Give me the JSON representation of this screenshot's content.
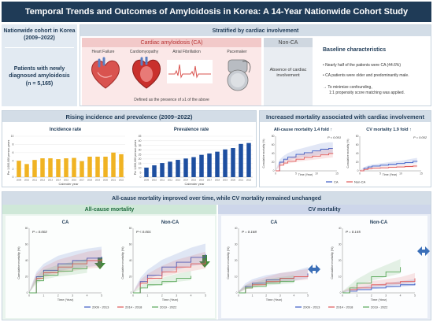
{
  "title": "Temporal Trends and Outcomes of Amyloidosis in Korea: A 14-Year Nationwide Cohort Study",
  "cohort": {
    "title_line1": "Nationwide cohort in Korea",
    "title_line2": "(2009–2022)",
    "patients_line1": "Patients with newly",
    "patients_line2": "diagnosed amyloidosis",
    "patients_line3": "(n = 5,165)"
  },
  "stratified": {
    "header": "Stratified by cardiac involvement",
    "ca_label": "Cardiac amyloidosis (CA)",
    "items": [
      "Heart Failure",
      "Cardiomyopathy",
      "Atrial Fibrillation",
      "Pacemaker"
    ],
    "ca_definition": "Defined as the presence of ≥1 of the above",
    "nonca_label": "Non-CA",
    "nonca_line1": "Absence of cardiac",
    "nonca_line2": "involvement",
    "baseline_title": "Baseline characteristics",
    "baseline_bullets": [
      "Nearly half of the patients were CA (44.6%)",
      "CA patients were older and predominantly male."
    ],
    "baseline_arrow_line1": "To minimize confounding,",
    "baseline_arrow_line2": "1:1 propensity score matching was applied."
  },
  "rising": {
    "header": "Rising incidence and prevalence (2009–2022)",
    "incidence": {
      "title": "Incidence rate",
      "ylabel": "Per 1,000,000 person-years",
      "xlabel": "Calender year",
      "yticks": [
        "0",
        "2",
        "4",
        "6",
        "8",
        "10"
      ],
      "color": "#f0b323"
    },
    "prevalence": {
      "title": "Prevalence rate",
      "ylabel": "Per 1,000,000 person-years",
      "xlabel": "Calender year",
      "yticks": [
        "0",
        "5",
        "10",
        "15",
        "20",
        "25",
        "30",
        "35",
        "40",
        "45"
      ],
      "color": "#1e4fa0"
    }
  },
  "mortality": {
    "header": "Increased mortality associated with cardiac involvement",
    "allcause_title": "All-cause mortality 1.4 fold ↑",
    "cv_title": "CV mortality 1.9 fold ↑",
    "allcause_p": "P < 0.001",
    "cv_p": "P = 0.002",
    "ylabel": "Cumulative mortality (%)",
    "xlabel": "Time (Year)",
    "xticks": [
      "0",
      "5",
      "10",
      "15"
    ],
    "allcause_yticks": [
      "0",
      "20",
      "40",
      "60",
      "80"
    ],
    "cv_yticks": [
      "0",
      "20",
      "40",
      "60",
      "80"
    ],
    "legend_ca": "CA",
    "legend_nonca": "Non-CA",
    "ca_color": "#3b5bc4",
    "nonca_color": "#e05a5a"
  },
  "over_time": {
    "header": "All-cause mortality improved over time,  while CV mortality remained unchanged",
    "allcause_label": "All-cause mortality",
    "cv_label": "CV mortality",
    "ylabel": "Cumulative mortality (%)",
    "xlabel": "Time (Year)",
    "xticks": [
      "0",
      "1",
      "2",
      "3",
      "4",
      "5"
    ],
    "ac_ca": {
      "title": "CA",
      "p": "P = 0.002",
      "yticks": [
        "0",
        "20",
        "40",
        "60",
        "80"
      ]
    },
    "ac_nonca": {
      "title": "Non-CA",
      "p": "P < 0.001",
      "yticks": [
        "0",
        "20",
        "40",
        "60",
        "80"
      ]
    },
    "cv_ca": {
      "title": "CA",
      "p": "P = 0.168",
      "yticks": [
        "0",
        "10",
        "20",
        "30",
        "40"
      ]
    },
    "cv_nonca": {
      "title": "Non-CA",
      "p": "P = 0.145",
      "yticks": [
        "0",
        "10",
        "20",
        "30",
        "40"
      ]
    },
    "legend": [
      "2009 - 2013",
      "2014 - 2018",
      "2019 - 2022"
    ],
    "legend_colors": [
      "#3b5bc4",
      "#e05a5a",
      "#5aa85a"
    ]
  },
  "chart_data": [
    {
      "type": "bar",
      "title": "Incidence rate",
      "xlabel": "Calender year",
      "ylabel": "Per 1,000,000 person-years",
      "categories": [
        "2009",
        "2010",
        "2011",
        "2012",
        "2013",
        "2014",
        "2015",
        "2016",
        "2017",
        "2018",
        "2019",
        "2020",
        "2021",
        "2022"
      ],
      "values": [
        4.0,
        3.2,
        4.2,
        4.6,
        4.6,
        4.4,
        4.6,
        4.7,
        3.9,
        5.0,
        5.0,
        5.0,
        6.0,
        5.6
      ],
      "ylim": [
        0,
        10
      ]
    },
    {
      "type": "bar",
      "title": "Prevalence rate",
      "xlabel": "Calender year",
      "ylabel": "Per 1,000,000 person-years",
      "categories": [
        "2009",
        "2010",
        "2011",
        "2012",
        "2013",
        "2014",
        "2015",
        "2016",
        "2017",
        "2018",
        "2019",
        "2020",
        "2021",
        "2022"
      ],
      "values": [
        10.5,
        13.0,
        15.5,
        17.0,
        19.0,
        20.5,
        22.0,
        24.5,
        26.0,
        28.0,
        30.5,
        32.0,
        36.5,
        37.5
      ],
      "ylim": [
        0,
        45
      ]
    },
    {
      "type": "line",
      "title": "All-cause mortality 1.4 fold ↑",
      "xlabel": "Time (Year)",
      "ylabel": "Cumulative mortality (%)",
      "ylim": [
        0,
        80
      ],
      "xlim": [
        0,
        15
      ],
      "series": [
        {
          "name": "CA",
          "x": [
            0,
            1,
            2,
            3,
            5,
            7,
            9,
            11,
            13,
            14
          ],
          "y": [
            0,
            20,
            27,
            32,
            38,
            42,
            46,
            50,
            52,
            52
          ]
        },
        {
          "name": "Non-CA",
          "x": [
            0,
            1,
            2,
            3,
            5,
            7,
            9,
            11,
            13,
            14
          ],
          "y": [
            0,
            13,
            18,
            22,
            27,
            31,
            34,
            37,
            40,
            41
          ]
        }
      ]
    },
    {
      "type": "line",
      "title": "CV mortality 1.9 fold ↑",
      "xlabel": "Time (Year)",
      "ylabel": "Cumulative mortality (%)",
      "ylim": [
        0,
        80
      ],
      "xlim": [
        0,
        15
      ],
      "series": [
        {
          "name": "CA",
          "x": [
            0,
            1,
            2,
            3,
            5,
            7,
            9,
            11,
            13,
            14
          ],
          "y": [
            0,
            6,
            9,
            11,
            13,
            15,
            17,
            19,
            22,
            23
          ]
        },
        {
          "name": "Non-CA",
          "x": [
            0,
            1,
            2,
            3,
            5,
            7,
            9,
            11,
            13,
            14
          ],
          "y": [
            0,
            3,
            5,
            6,
            7,
            8,
            9,
            10,
            11,
            11
          ]
        }
      ]
    },
    {
      "type": "line",
      "title": "CA",
      "xlabel": "Time (Year)",
      "ylabel": "Cumulative mortality (%)",
      "ylim": [
        0,
        80
      ],
      "xlim": [
        0,
        5
      ],
      "series": [
        {
          "name": "2009 - 2013",
          "x": [
            0,
            0.5,
            1,
            2,
            3,
            4,
            5
          ],
          "y": [
            0,
            20,
            28,
            36,
            40,
            43,
            45
          ]
        },
        {
          "name": "2014 - 2018",
          "x": [
            0,
            0.5,
            1,
            2,
            3,
            4,
            5
          ],
          "y": [
            0,
            18,
            25,
            32,
            36,
            40,
            42
          ]
        },
        {
          "name": "2019 - 2022",
          "x": [
            0,
            0.5,
            1,
            2,
            3,
            4
          ],
          "y": [
            0,
            15,
            22,
            27,
            30,
            33
          ]
        }
      ]
    },
    {
      "type": "line",
      "title": "Non-CA",
      "xlabel": "Time (Year)",
      "ylabel": "Cumulative mortality (%)",
      "ylim": [
        0,
        80
      ],
      "xlim": [
        0,
        5
      ],
      "series": [
        {
          "name": "2009 - 2013",
          "x": [
            0,
            0.5,
            1,
            2,
            3,
            4,
            5
          ],
          "y": [
            0,
            14,
            22,
            32,
            38,
            44,
            48
          ]
        },
        {
          "name": "2014 - 2018",
          "x": [
            0,
            0.5,
            1,
            2,
            3,
            4,
            5
          ],
          "y": [
            0,
            12,
            18,
            26,
            32,
            36,
            40
          ]
        },
        {
          "name": "2019 - 2022",
          "x": [
            0,
            0.5,
            1,
            2,
            3,
            4
          ],
          "y": [
            0,
            6,
            10,
            14,
            18,
            21
          ]
        }
      ]
    },
    {
      "type": "line",
      "title": "CA",
      "xlabel": "Time (Year)",
      "ylabel": "Cumulative mortality (%)",
      "ylim": [
        0,
        40
      ],
      "xlim": [
        0,
        5
      ],
      "series": [
        {
          "name": "2009 - 2013",
          "x": [
            0,
            0.5,
            1,
            2,
            3,
            4,
            5
          ],
          "y": [
            0,
            4,
            6,
            8,
            9,
            10,
            12
          ]
        },
        {
          "name": "2014 - 2018",
          "x": [
            0,
            0.5,
            1,
            2,
            3,
            4,
            5
          ],
          "y": [
            0,
            3,
            5,
            7,
            9,
            10,
            11
          ]
        },
        {
          "name": "2019 - 2022",
          "x": [
            0,
            0.5,
            1,
            2,
            3,
            4
          ],
          "y": [
            0,
            3,
            4,
            6,
            7,
            8
          ]
        }
      ]
    },
    {
      "type": "line",
      "title": "Non-CA",
      "xlabel": "Time (Year)",
      "ylabel": "Cumulative mortality (%)",
      "ylim": [
        0,
        40
      ],
      "xlim": [
        0,
        5
      ],
      "series": [
        {
          "name": "2009 - 2013",
          "x": [
            0,
            0.5,
            1,
            2,
            3,
            4,
            5
          ],
          "y": [
            0,
            1,
            2,
            3,
            4,
            5,
            6
          ]
        },
        {
          "name": "2014 - 2018",
          "x": [
            0,
            0.5,
            1,
            2,
            3,
            4,
            5
          ],
          "y": [
            0,
            2,
            3,
            5,
            6,
            7,
            9
          ]
        },
        {
          "name": "2019 - 2022",
          "x": [
            0,
            0.5,
            1,
            2,
            3,
            4
          ],
          "y": [
            0,
            3,
            6,
            10,
            13,
            16
          ]
        }
      ]
    }
  ]
}
